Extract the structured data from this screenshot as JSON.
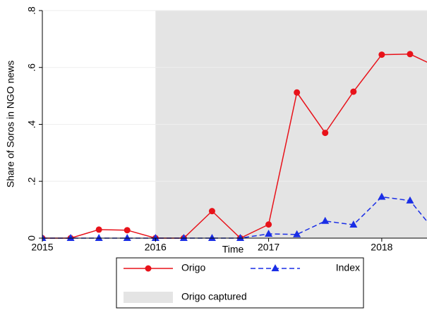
{
  "chart_data": {
    "type": "line",
    "xlabel": "Time",
    "ylabel": "Share of Soros in NGO news",
    "x": [
      2015,
      2015.25,
      2015.5,
      2015.75,
      2016,
      2016.25,
      2016.5,
      2016.75,
      2017,
      2017.25,
      2017.5,
      2017.75,
      2018,
      2018.25,
      2018.5
    ],
    "series": [
      {
        "name": "Origo",
        "color": "#e8121a",
        "marker": "circle",
        "dash": false,
        "values": [
          0,
          0,
          0.03,
          0.028,
          0,
          0,
          0.095,
          0,
          0.048,
          0.512,
          0.37,
          0.515,
          0.645,
          0.647,
          0.6
        ]
      },
      {
        "name": "Index",
        "color": "#1a2ee6",
        "marker": "triangle",
        "dash": true,
        "values": [
          0,
          0,
          0,
          0,
          0,
          0,
          0,
          0,
          0.015,
          0.013,
          0.06,
          0.047,
          0.145,
          0.132,
          0.01
        ]
      }
    ],
    "shade": {
      "name": "Origo captured",
      "from": 2016,
      "color": "#e4e4e4"
    },
    "xlim": [
      2015,
      2018.4
    ],
    "xticks": [
      2015,
      2016,
      2017,
      2018
    ],
    "ylim": [
      0,
      0.8
    ],
    "yticks": [
      0,
      {
        "value": 0.2,
        "label": ".2"
      },
      {
        "value": 0.4,
        "label": ".4"
      },
      {
        "value": 0.6,
        "label": ".6"
      },
      {
        "value": 0.8,
        "label": ".8"
      }
    ],
    "grid": true
  }
}
